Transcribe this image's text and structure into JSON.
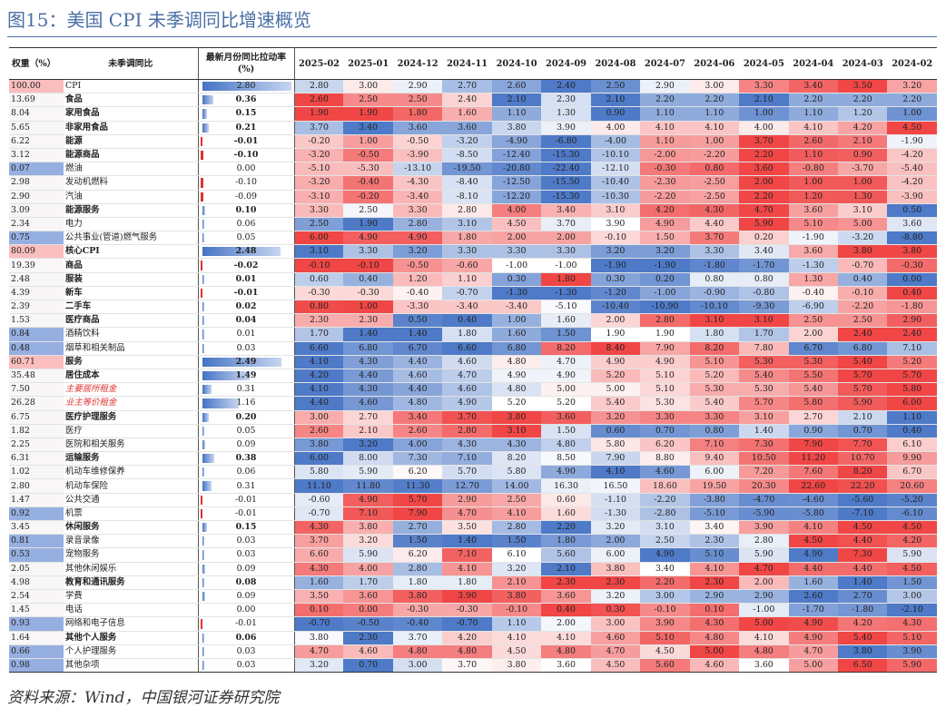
{
  "title": "图15：美国 CPI 未季调同比增速概览",
  "source": "资料来源：Wind，中国银河证券研究院",
  "headers": {
    "weight": "权重（%）",
    "name": "未季调同比",
    "contribution": "最新月份同比拉动率\n(%)",
    "months": [
      "2025-02",
      "2025-01",
      "2024-12",
      "2024-11",
      "2024-10",
      "2024-09",
      "2024-08",
      "2024-07",
      "2024-06",
      "2024-05",
      "2024-04",
      "2024-03",
      "2024-02"
    ]
  },
  "colors": {
    "high": "#f03c3c",
    "low": "#4573c5",
    "mid": "#ffffff",
    "bar": "#4573c5",
    "negbar": "#e03030"
  },
  "chart_data": {
    "type": "table",
    "rows": [
      {
        "weight": "100.00",
        "name": "CPI",
        "level": 0,
        "bold": false,
        "section": true,
        "contrib": "2.80",
        "values": [
          "2.80",
          "3.00",
          "2.90",
          "2.70",
          "2.60",
          "2.40",
          "2.50",
          "2.90",
          "3.00",
          "3.30",
          "3.40",
          "3.50",
          "3.20"
        ]
      },
      {
        "weight": "13.69",
        "name": "食品",
        "level": 1,
        "bold": true,
        "section": false,
        "contrib": "0.36",
        "values": [
          "2.60",
          "2.50",
          "2.50",
          "2.40",
          "2.10",
          "2.30",
          "2.10",
          "2.20",
          "2.20",
          "2.10",
          "2.20",
          "2.20",
          "2.20"
        ]
      },
      {
        "weight": "8.04",
        "name": "家用食品",
        "level": 2,
        "bold": true,
        "section": false,
        "contrib": "0.15",
        "values": [
          "1.90",
          "1.90",
          "1.80",
          "1.60",
          "1.10",
          "1.30",
          "0.90",
          "1.10",
          "1.10",
          "1.00",
          "1.10",
          "1.20",
          "1.00"
        ]
      },
      {
        "weight": "5.65",
        "name": "非家用食品",
        "level": 2,
        "bold": true,
        "section": false,
        "contrib": "0.21",
        "values": [
          "3.70",
          "3.40",
          "3.60",
          "3.60",
          "3.80",
          "3.90",
          "4.00",
          "4.10",
          "4.10",
          "4.00",
          "4.10",
          "4.20",
          "4.50"
        ]
      },
      {
        "weight": "6.22",
        "name": "能源",
        "level": 1,
        "bold": true,
        "section": true,
        "contrib": "-0.01",
        "values": [
          "-0.20",
          "1.00",
          "-0.50",
          "-3.20",
          "-4.90",
          "-6.80",
          "-4.00",
          "1.10",
          "1.00",
          "3.70",
          "2.60",
          "2.10",
          "-1.90"
        ]
      },
      {
        "weight": "3.12",
        "name": "能源商品",
        "level": 2,
        "bold": true,
        "section": false,
        "contrib": "-0.10",
        "values": [
          "-3.20",
          "-0.50",
          "-3.90",
          "-8.50",
          "-12.40",
          "-15.30",
          "-10.10",
          "-2.00",
          "-2.20",
          "2.20",
          "1.10",
          "0.90",
          "-4.20"
        ]
      },
      {
        "weight": "0.07",
        "name": "燃油",
        "level": 3,
        "bold": false,
        "section": false,
        "contrib": "0.00",
        "values": [
          "-5.10",
          "-5.30",
          "-13.10",
          "-19.50",
          "-20.80",
          "-22.40",
          "-12.10",
          "-0.30",
          "0.80",
          "3.60",
          "-0.80",
          "-3.70",
          "-5.40"
        ]
      },
      {
        "weight": "2.98",
        "name": "发动机燃料",
        "level": 3,
        "bold": false,
        "section": false,
        "contrib": "-0.10",
        "values": [
          "-3.20",
          "-0.40",
          "-4.30",
          "-8.40",
          "-12.50",
          "-15.50",
          "-10.40",
          "-2.30",
          "-2.50",
          "2.00",
          "1.00",
          "1.00",
          "-4.20"
        ]
      },
      {
        "weight": "2.90",
        "name": "汽油",
        "level": 3,
        "bold": false,
        "section": false,
        "contrib": "-0.09",
        "values": [
          "-3.10",
          "-0.20",
          "-3.40",
          "-8.10",
          "-12.20",
          "-15.30",
          "-10.30",
          "-2.20",
          "-2.50",
          "2.20",
          "1.20",
          "1.30",
          "-3.90"
        ]
      },
      {
        "weight": "3.09",
        "name": "能源服务",
        "level": 2,
        "bold": true,
        "section": false,
        "contrib": "0.10",
        "values": [
          "3.30",
          "2.50",
          "3.30",
          "2.80",
          "4.00",
          "3.40",
          "3.10",
          "4.20",
          "4.30",
          "4.70",
          "3.60",
          "3.10",
          "0.50"
        ]
      },
      {
        "weight": "2.34",
        "name": "电力",
        "level": 3,
        "bold": false,
        "section": false,
        "contrib": "0.06",
        "values": [
          "2.50",
          "1.90",
          "2.80",
          "3.10",
          "4.50",
          "3.70",
          "3.90",
          "4.90",
          "4.40",
          "5.90",
          "5.10",
          "5.00",
          "3.60"
        ]
      },
      {
        "weight": "0.75",
        "name": "公共事业(管道)燃气服务",
        "level": 3,
        "bold": false,
        "section": false,
        "contrib": "0.05",
        "values": [
          "6.00",
          "4.90",
          "4.90",
          "1.80",
          "2.00",
          "2.00",
          "-0.10",
          "1.50",
          "3.70",
          "0.20",
          "-1.90",
          "-3.20",
          "-8.80"
        ]
      },
      {
        "weight": "80.09",
        "name": "核心CPI",
        "level": 0,
        "bold": true,
        "section": true,
        "contrib": "2.48",
        "values": [
          "3.10",
          "3.30",
          "3.20",
          "3.30",
          "3.30",
          "3.30",
          "3.20",
          "3.20",
          "3.30",
          "3.40",
          "3.60",
          "3.80",
          "3.80"
        ]
      },
      {
        "weight": "19.39",
        "name": "商品",
        "level": 1,
        "bold": true,
        "section": true,
        "contrib": "-0.02",
        "values": [
          "-0.10",
          "-0.10",
          "-0.50",
          "-0.60",
          "-1.00",
          "-1.00",
          "-1.90",
          "-1.90",
          "-1.80",
          "-1.70",
          "-1.30",
          "-0.70",
          "-0.30"
        ]
      },
      {
        "weight": "2.48",
        "name": "服装",
        "level": 2,
        "bold": true,
        "section": false,
        "contrib": "0.01",
        "values": [
          "0.60",
          "0.40",
          "1.20",
          "1.10",
          "0.30",
          "1.80",
          "0.30",
          "0.20",
          "0.80",
          "0.80",
          "1.30",
          "0.40",
          "0.00"
        ]
      },
      {
        "weight": "4.39",
        "name": "新车",
        "level": 2,
        "bold": true,
        "section": false,
        "contrib": "-0.01",
        "values": [
          "-0.30",
          "-0.30",
          "-0.40",
          "-0.70",
          "-1.30",
          "-1.30",
          "-1.20",
          "-1.00",
          "-0.90",
          "-0.80",
          "-0.40",
          "-0.10",
          "0.40"
        ]
      },
      {
        "weight": "2.39",
        "name": "二手车",
        "level": 2,
        "bold": true,
        "section": false,
        "contrib": "0.02",
        "values": [
          "0.80",
          "1.00",
          "-3.30",
          "-3.40",
          "-3.40",
          "-5.10",
          "-10.40",
          "-10.90",
          "-10.10",
          "-9.30",
          "-6.90",
          "-2.20",
          "-1.80"
        ]
      },
      {
        "weight": "1.53",
        "name": "医疗商品",
        "level": 2,
        "bold": true,
        "section": false,
        "contrib": "0.04",
        "values": [
          "2.30",
          "2.30",
          "0.50",
          "0.40",
          "1.00",
          "1.60",
          "2.00",
          "2.80",
          "3.10",
          "3.10",
          "2.50",
          "2.50",
          "2.90"
        ]
      },
      {
        "weight": "0.84",
        "name": "酒精饮料",
        "level": 3,
        "bold": false,
        "section": false,
        "contrib": "0.01",
        "values": [
          "1.70",
          "1.40",
          "1.40",
          "1.80",
          "1.60",
          "1.50",
          "1.90",
          "1.90",
          "1.80",
          "1.70",
          "2.00",
          "2.40",
          "2.40"
        ]
      },
      {
        "weight": "0.48",
        "name": "烟草和相关制品",
        "level": 3,
        "bold": false,
        "section": false,
        "contrib": "0.03",
        "values": [
          "6.60",
          "6.80",
          "6.70",
          "6.60",
          "6.80",
          "8.20",
          "8.40",
          "7.90",
          "8.20",
          "7.80",
          "6.70",
          "6.80",
          "7.10"
        ]
      },
      {
        "weight": "60.71",
        "name": "服务",
        "level": 1,
        "bold": true,
        "section": true,
        "contrib": "2.49",
        "values": [
          "4.10",
          "4.30",
          "4.40",
          "4.60",
          "4.80",
          "4.70",
          "4.90",
          "4.90",
          "5.10",
          "5.30",
          "5.30",
          "5.40",
          "5.20"
        ]
      },
      {
        "weight": "35.48",
        "name": "居住成本",
        "level": 2,
        "bold": true,
        "section": false,
        "contrib": "1.49",
        "values": [
          "4.20",
          "4.40",
          "4.60",
          "4.70",
          "4.90",
          "4.90",
          "5.20",
          "5.10",
          "5.20",
          "5.40",
          "5.50",
          "5.70",
          "5.70"
        ]
      },
      {
        "weight": "7.50",
        "name": "主要居所租金",
        "level": 3,
        "bold": false,
        "red": true,
        "section": false,
        "contrib": "0.31",
        "values": [
          "4.10",
          "4.30",
          "4.40",
          "4.60",
          "4.80",
          "5.00",
          "5.00",
          "5.10",
          "5.30",
          "5.30",
          "5.40",
          "5.70",
          "5.80"
        ]
      },
      {
        "weight": "26.28",
        "name": "业主等价租金",
        "level": 3,
        "bold": false,
        "red": true,
        "section": false,
        "contrib": "1.16",
        "values": [
          "4.40",
          "4.60",
          "4.80",
          "4.90",
          "5.20",
          "5.20",
          "5.40",
          "5.30",
          "5.40",
          "5.70",
          "5.80",
          "5.90",
          "6.00"
        ]
      },
      {
        "weight": "6.75",
        "name": "医疗护理服务",
        "level": 2,
        "bold": true,
        "section": false,
        "contrib": "0.20",
        "values": [
          "3.00",
          "2.70",
          "3.40",
          "3.70",
          "3.80",
          "3.60",
          "3.20",
          "3.30",
          "3.30",
          "3.10",
          "2.70",
          "2.10",
          "1.10"
        ]
      },
      {
        "weight": "1.82",
        "name": "医疗",
        "level": 3,
        "bold": false,
        "section": false,
        "contrib": "0.05",
        "values": [
          "2.60",
          "2.10",
          "2.60",
          "2.80",
          "3.10",
          "1.50",
          "0.60",
          "0.70",
          "0.80",
          "1.40",
          "0.90",
          "0.70",
          "0.40"
        ]
      },
      {
        "weight": "2.25",
        "name": "医院和相关服务",
        "level": 3,
        "bold": false,
        "section": false,
        "contrib": "0.09",
        "values": [
          "3.80",
          "3.20",
          "4.00",
          "4.30",
          "4.30",
          "4.80",
          "5.80",
          "6.20",
          "7.10",
          "7.30",
          "7.90",
          "7.70",
          "6.10"
        ]
      },
      {
        "weight": "6.31",
        "name": "运输服务",
        "level": 2,
        "bold": true,
        "section": false,
        "contrib": "0.38",
        "values": [
          "6.00",
          "8.00",
          "7.30",
          "7.10",
          "8.20",
          "8.50",
          "7.90",
          "8.80",
          "9.40",
          "10.50",
          "11.20",
          "10.70",
          "9.90"
        ]
      },
      {
        "weight": "1.02",
        "name": "机动车维修保养",
        "level": 3,
        "bold": false,
        "section": false,
        "contrib": "0.06",
        "values": [
          "5.80",
          "5.90",
          "6.20",
          "5.70",
          "5.80",
          "4.90",
          "4.10",
          "4.60",
          "6.00",
          "7.20",
          "7.60",
          "8.20",
          "6.70"
        ]
      },
      {
        "weight": "2.80",
        "name": "机动车保险",
        "level": 3,
        "bold": false,
        "section": false,
        "contrib": "0.31",
        "values": [
          "11.10",
          "11.80",
          "11.30",
          "12.70",
          "14.00",
          "16.30",
          "16.50",
          "18.60",
          "19.50",
          "20.30",
          "22.60",
          "22.20",
          "20.60"
        ]
      },
      {
        "weight": "1.47",
        "name": "公共交通",
        "level": 3,
        "bold": false,
        "section": false,
        "contrib": "-0.01",
        "values": [
          "-0.60",
          "4.90",
          "5.70",
          "2.90",
          "2.50",
          "0.60",
          "-1.10",
          "-2.20",
          "-3.80",
          "-4.70",
          "-4.60",
          "-5.60",
          "-5.20"
        ]
      },
      {
        "weight": "0.92",
        "name": "机票",
        "level": 3,
        "bold": false,
        "section": false,
        "contrib": "-0.01",
        "values": [
          "-0.70",
          "7.10",
          "7.90",
          "4.70",
          "4.10",
          "1.60",
          "-1.30",
          "-2.80",
          "-5.10",
          "-5.90",
          "-5.80",
          "-7.10",
          "-6.10"
        ]
      },
      {
        "weight": "3.45",
        "name": "休闲服务",
        "level": 2,
        "bold": true,
        "section": false,
        "contrib": "0.15",
        "values": [
          "4.30",
          "3.80",
          "2.70",
          "3.50",
          "2.80",
          "2.20",
          "3.20",
          "3.10",
          "3.40",
          "3.90",
          "4.10",
          "4.50",
          "4.50"
        ]
      },
      {
        "weight": "0.81",
        "name": "录音录像",
        "level": 3,
        "bold": false,
        "section": false,
        "contrib": "0.03",
        "values": [
          "3.70",
          "3.20",
          "1.50",
          "1.40",
          "1.50",
          "1.80",
          "2.00",
          "2.50",
          "2.30",
          "2.80",
          "4.50",
          "4.40",
          "4.20"
        ]
      },
      {
        "weight": "0.53",
        "name": "宠物服务",
        "level": 3,
        "bold": false,
        "section": false,
        "contrib": "0.03",
        "values": [
          "6.60",
          "5.90",
          "6.20",
          "7.10",
          "6.10",
          "5.60",
          "6.00",
          "4.90",
          "5.10",
          "5.90",
          "4.90",
          "7.30",
          "5.90"
        ]
      },
      {
        "weight": "2.05",
        "name": "其他休闲娱乐",
        "level": 3,
        "bold": false,
        "section": false,
        "contrib": "0.09",
        "values": [
          "4.30",
          "4.00",
          "2.80",
          "4.10",
          "3.20",
          "2.10",
          "3.80",
          "3.40",
          "4.10",
          "4.70",
          "4.40",
          "4.40",
          "4.50"
        ]
      },
      {
        "weight": "4.98",
        "name": "教育和通讯服务",
        "level": 2,
        "bold": true,
        "section": false,
        "contrib": "0.08",
        "values": [
          "1.60",
          "1.70",
          "1.80",
          "1.80",
          "2.10",
          "2.30",
          "2.30",
          "2.20",
          "2.30",
          "2.00",
          "1.60",
          "1.40",
          "1.50"
        ]
      },
      {
        "weight": "2.54",
        "name": "学费",
        "level": 3,
        "bold": false,
        "section": false,
        "contrib": "0.09",
        "values": [
          "3.50",
          "3.60",
          "3.80",
          "3.90",
          "3.80",
          "3.60",
          "3.20",
          "3.00",
          "2.90",
          "2.90",
          "2.60",
          "2.70",
          "3.00"
        ]
      },
      {
        "weight": "1.45",
        "name": "电话",
        "level": 3,
        "bold": false,
        "section": false,
        "contrib": "0.00",
        "values": [
          "0.10",
          "0.00",
          "-0.30",
          "-0.30",
          "-0.10",
          "0.40",
          "0.30",
          "-0.10",
          "0.10",
          "-1.00",
          "-1.70",
          "-1.80",
          "-2.10"
        ]
      },
      {
        "weight": "0.93",
        "name": "网络和电子信息",
        "level": 3,
        "bold": false,
        "section": false,
        "contrib": "-0.01",
        "values": [
          "-0.70",
          "-0.50",
          "-0.40",
          "-0.70",
          "1.10",
          "2.00",
          "3.00",
          "3.90",
          "4.30",
          "5.00",
          "4.90",
          "4.20",
          "4.30"
        ]
      },
      {
        "weight": "1.64",
        "name": "其他个人服务",
        "level": 2,
        "bold": true,
        "section": false,
        "contrib": "0.06",
        "values": [
          "3.80",
          "2.30",
          "3.70",
          "4.20",
          "4.10",
          "4.10",
          "4.60",
          "5.10",
          "4.80",
          "4.10",
          "4.90",
          "5.40",
          "5.10"
        ]
      },
      {
        "weight": "0.66",
        "name": "个人护理服务",
        "level": 3,
        "bold": false,
        "section": false,
        "contrib": "0.03",
        "values": [
          "4.70",
          "4.60",
          "4.80",
          "4.80",
          "4.50",
          "4.80",
          "4.70",
          "4.50",
          "5.00",
          "4.80",
          "4.70",
          "3.80",
          "3.90"
        ]
      },
      {
        "weight": "0.98",
        "name": "其他杂项",
        "level": 3,
        "bold": false,
        "section": false,
        "contrib": "0.03",
        "values": [
          "3.20",
          "0.70",
          "3.00",
          "3.70",
          "3.80",
          "3.60",
          "4.50",
          "5.60",
          "4.60",
          "3.60",
          "5.00",
          "6.50",
          "5.90"
        ]
      }
    ]
  }
}
